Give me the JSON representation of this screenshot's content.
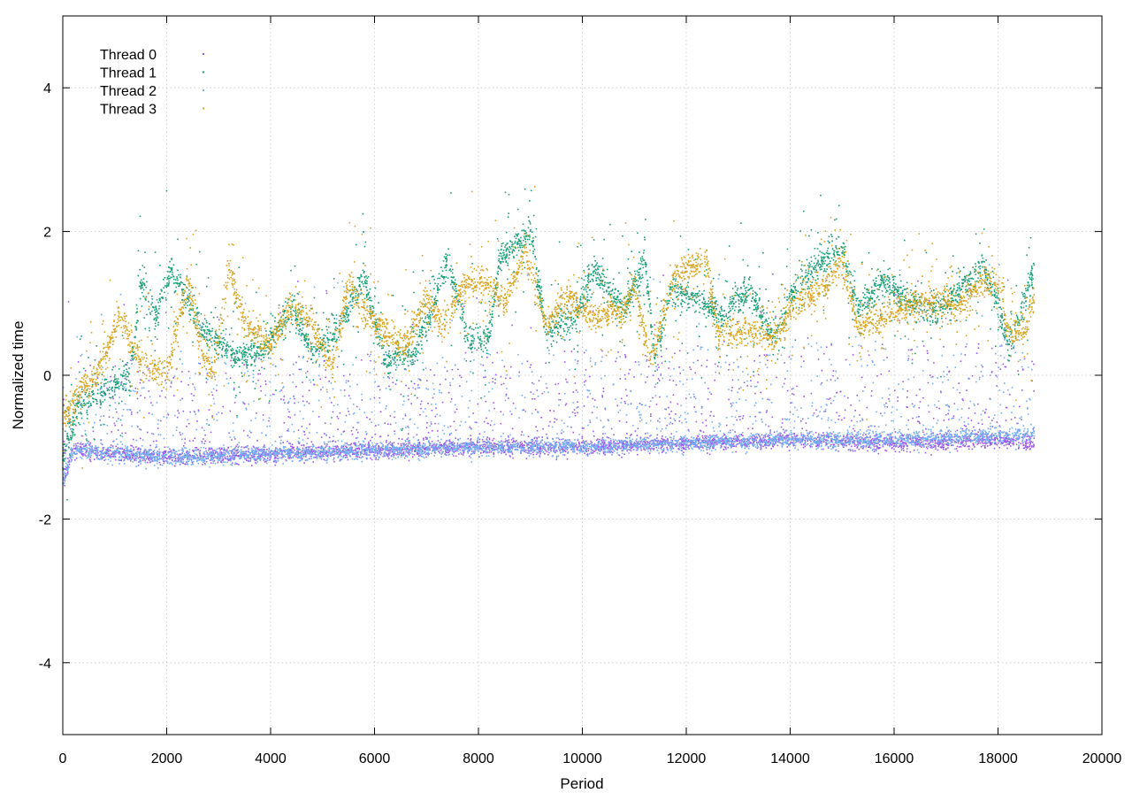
{
  "chart_data": {
    "type": "scatter",
    "title": "",
    "xlabel": "Period",
    "ylabel": "Normalized time",
    "xlim": [
      0,
      20000
    ],
    "ylim": [
      -5,
      5
    ],
    "x_ticks": [
      0,
      2000,
      4000,
      6000,
      8000,
      10000,
      12000,
      14000,
      16000,
      18000,
      20000
    ],
    "y_ticks": [
      -4,
      -2,
      0,
      2,
      4
    ],
    "x_tick_labels": [
      "0",
      "2000",
      "4000",
      "6000",
      "8000",
      "10000",
      "12000",
      "14000",
      "16000",
      "18000",
      "20000"
    ],
    "y_tick_labels": [
      "-4",
      "-2",
      "0",
      "2",
      "4"
    ],
    "grid": true,
    "legend_position": "top-left",
    "x_max_data": 18700,
    "series": [
      {
        "name": "Thread 0",
        "color": "#9b59e8",
        "role": "low",
        "trend": [
          [
            0,
            -1.5
          ],
          [
            200,
            -1.05
          ],
          [
            2000,
            -1.15
          ],
          [
            4000,
            -1.1
          ],
          [
            6000,
            -1.05
          ],
          [
            8000,
            -1.0
          ],
          [
            10000,
            -1.0
          ],
          [
            12000,
            -0.95
          ],
          [
            14000,
            -0.9
          ],
          [
            16000,
            -0.95
          ],
          [
            18000,
            -0.9
          ],
          [
            18700,
            -0.95
          ]
        ]
      },
      {
        "name": "Thread 1",
        "color": "#1a9e77",
        "role": "high",
        "trend": [
          [
            0,
            -1.2
          ],
          [
            300,
            -0.4
          ],
          [
            1300,
            0.0
          ],
          [
            1500,
            1.3
          ],
          [
            1800,
            0.8
          ],
          [
            2100,
            1.5
          ],
          [
            2700,
            0.6
          ],
          [
            3300,
            0.3
          ],
          [
            3800,
            0.3
          ],
          [
            4400,
            0.9
          ],
          [
            4800,
            0.3
          ],
          [
            5300,
            0.6
          ],
          [
            5800,
            1.4
          ],
          [
            6200,
            0.2
          ],
          [
            6800,
            0.3
          ],
          [
            7400,
            1.6
          ],
          [
            7800,
            0.5
          ],
          [
            8200,
            0.5
          ],
          [
            8400,
            1.6
          ],
          [
            9000,
            2.0
          ],
          [
            9300,
            0.6
          ],
          [
            9900,
            0.8
          ],
          [
            10200,
            1.5
          ],
          [
            10800,
            0.9
          ],
          [
            11200,
            1.6
          ],
          [
            11400,
            0.2
          ],
          [
            11700,
            1.2
          ],
          [
            12400,
            1.0
          ],
          [
            12700,
            0.8
          ],
          [
            13200,
            1.2
          ],
          [
            13700,
            0.5
          ],
          [
            14000,
            1.1
          ],
          [
            14500,
            1.5
          ],
          [
            15000,
            1.8
          ],
          [
            15300,
            0.9
          ],
          [
            15800,
            1.3
          ],
          [
            16300,
            1.0
          ],
          [
            16800,
            0.9
          ],
          [
            17300,
            1.2
          ],
          [
            17700,
            1.5
          ],
          [
            18000,
            1.0
          ],
          [
            18200,
            0.4
          ],
          [
            18700,
            1.4
          ]
        ]
      },
      {
        "name": "Thread 2",
        "color": "#74aef2",
        "role": "low",
        "trend": [
          [
            0,
            -1.5
          ],
          [
            200,
            -1.05
          ],
          [
            2000,
            -1.15
          ],
          [
            4000,
            -1.1
          ],
          [
            6000,
            -1.05
          ],
          [
            8000,
            -1.0
          ],
          [
            10000,
            -1.0
          ],
          [
            12000,
            -0.95
          ],
          [
            14000,
            -0.9
          ],
          [
            16000,
            -0.9
          ],
          [
            18000,
            -0.85
          ],
          [
            18700,
            -0.8
          ]
        ]
      },
      {
        "name": "Thread 3",
        "color": "#d9a521",
        "role": "high",
        "trend": [
          [
            0,
            -0.6
          ],
          [
            300,
            -0.3
          ],
          [
            700,
            0.1
          ],
          [
            1100,
            0.8
          ],
          [
            1500,
            0.2
          ],
          [
            2000,
            0.0
          ],
          [
            2400,
            1.3
          ],
          [
            2700,
            0.3
          ],
          [
            2900,
            0.0
          ],
          [
            3200,
            1.5
          ],
          [
            3500,
            0.7
          ],
          [
            4000,
            0.4
          ],
          [
            4400,
            1.0
          ],
          [
            4800,
            0.7
          ],
          [
            5200,
            0.1
          ],
          [
            5500,
            1.3
          ],
          [
            5700,
            1.0
          ],
          [
            6000,
            0.7
          ],
          [
            6600,
            0.4
          ],
          [
            7000,
            1.1
          ],
          [
            7300,
            0.7
          ],
          [
            7800,
            1.3
          ],
          [
            8200,
            1.3
          ],
          [
            8500,
            1.0
          ],
          [
            8900,
            1.7
          ],
          [
            9300,
            0.7
          ],
          [
            9700,
            1.1
          ],
          [
            10200,
            0.8
          ],
          [
            10800,
            0.9
          ],
          [
            11000,
            1.3
          ],
          [
            11300,
            0.2
          ],
          [
            11800,
            1.4
          ],
          [
            12400,
            1.6
          ],
          [
            12600,
            0.6
          ],
          [
            13400,
            0.6
          ],
          [
            13700,
            0.5
          ],
          [
            14100,
            1.0
          ],
          [
            14600,
            1.2
          ],
          [
            15000,
            1.6
          ],
          [
            15300,
            0.7
          ],
          [
            15800,
            0.8
          ],
          [
            16300,
            1.0
          ],
          [
            16800,
            1.0
          ],
          [
            17300,
            1.0
          ],
          [
            17700,
            1.3
          ],
          [
            18000,
            1.3
          ],
          [
            18200,
            0.6
          ],
          [
            18500,
            0.6
          ],
          [
            18700,
            1.1
          ]
        ]
      }
    ]
  }
}
